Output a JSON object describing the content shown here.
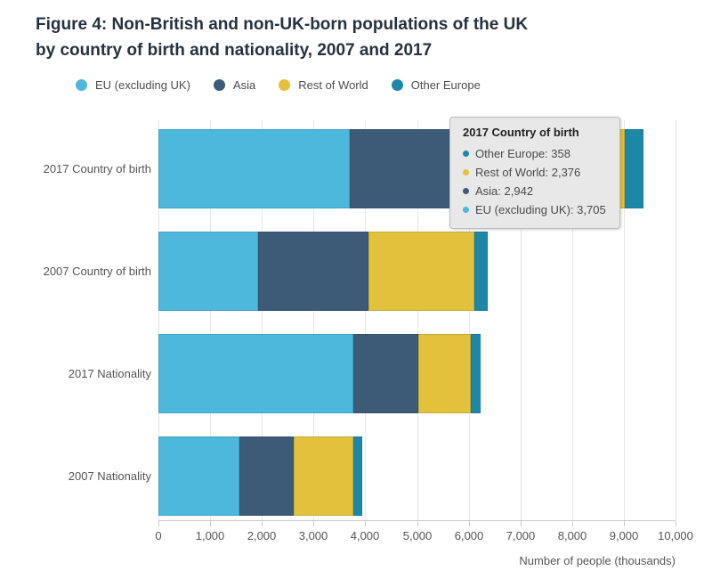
{
  "title": {
    "line1": "Figure 4: Non-British and non-UK-born populations of the UK",
    "line2": "by country of birth and nationality, 2007 and 2017"
  },
  "colors": {
    "eu": "#4db8dc",
    "asia": "#3d5a77",
    "rest_of_world": "#e2c13c",
    "other_europe": "#1d87a8",
    "gridline": "#e7e7e7",
    "axis": "#cccccc",
    "text": "#555555",
    "title_text": "#26323e",
    "tooltip_bg": "#e8e8e8"
  },
  "chart_data": {
    "type": "bar",
    "orientation": "horizontal",
    "stacked": true,
    "grid": true,
    "legend_position": "top",
    "categories": [
      "2017 Country of birth",
      "2007 Country of birth",
      "2017 Nationality",
      "2007 Nationality"
    ],
    "series": [
      {
        "name": "EU (excluding UK)",
        "color": "#4db8dc",
        "values": [
          3705,
          1930,
          3770,
          1560
        ]
      },
      {
        "name": "Asia",
        "color": "#3d5a77",
        "values": [
          2942,
          2130,
          1255,
          1060
        ]
      },
      {
        "name": "Rest of World",
        "color": "#e2c13c",
        "values": [
          2376,
          2050,
          1015,
          1150
        ]
      },
      {
        "name": "Other Europe",
        "color": "#1d87a8",
        "values": [
          358,
          260,
          190,
          170
        ]
      }
    ],
    "xlabel": "Number of people (thousands)",
    "xlim": [
      0,
      10000
    ],
    "xtick_labels": [
      "0",
      "1,000",
      "2,000",
      "3,000",
      "4,000",
      "5,000",
      "6,000",
      "7,000",
      "8,000",
      "9,000",
      "10,000"
    ]
  },
  "tooltip": {
    "title": "2017 Country of birth",
    "items": [
      {
        "label": "Other Europe",
        "value": "358",
        "color": "#1d87a8"
      },
      {
        "label": "Rest of World",
        "value": "2,376",
        "color": "#e2c13c"
      },
      {
        "label": "Asia",
        "value": "2,942",
        "color": "#3d5a77"
      },
      {
        "label": "EU (excluding UK)",
        "value": "3,705",
        "color": "#4db8dc"
      }
    ]
  }
}
